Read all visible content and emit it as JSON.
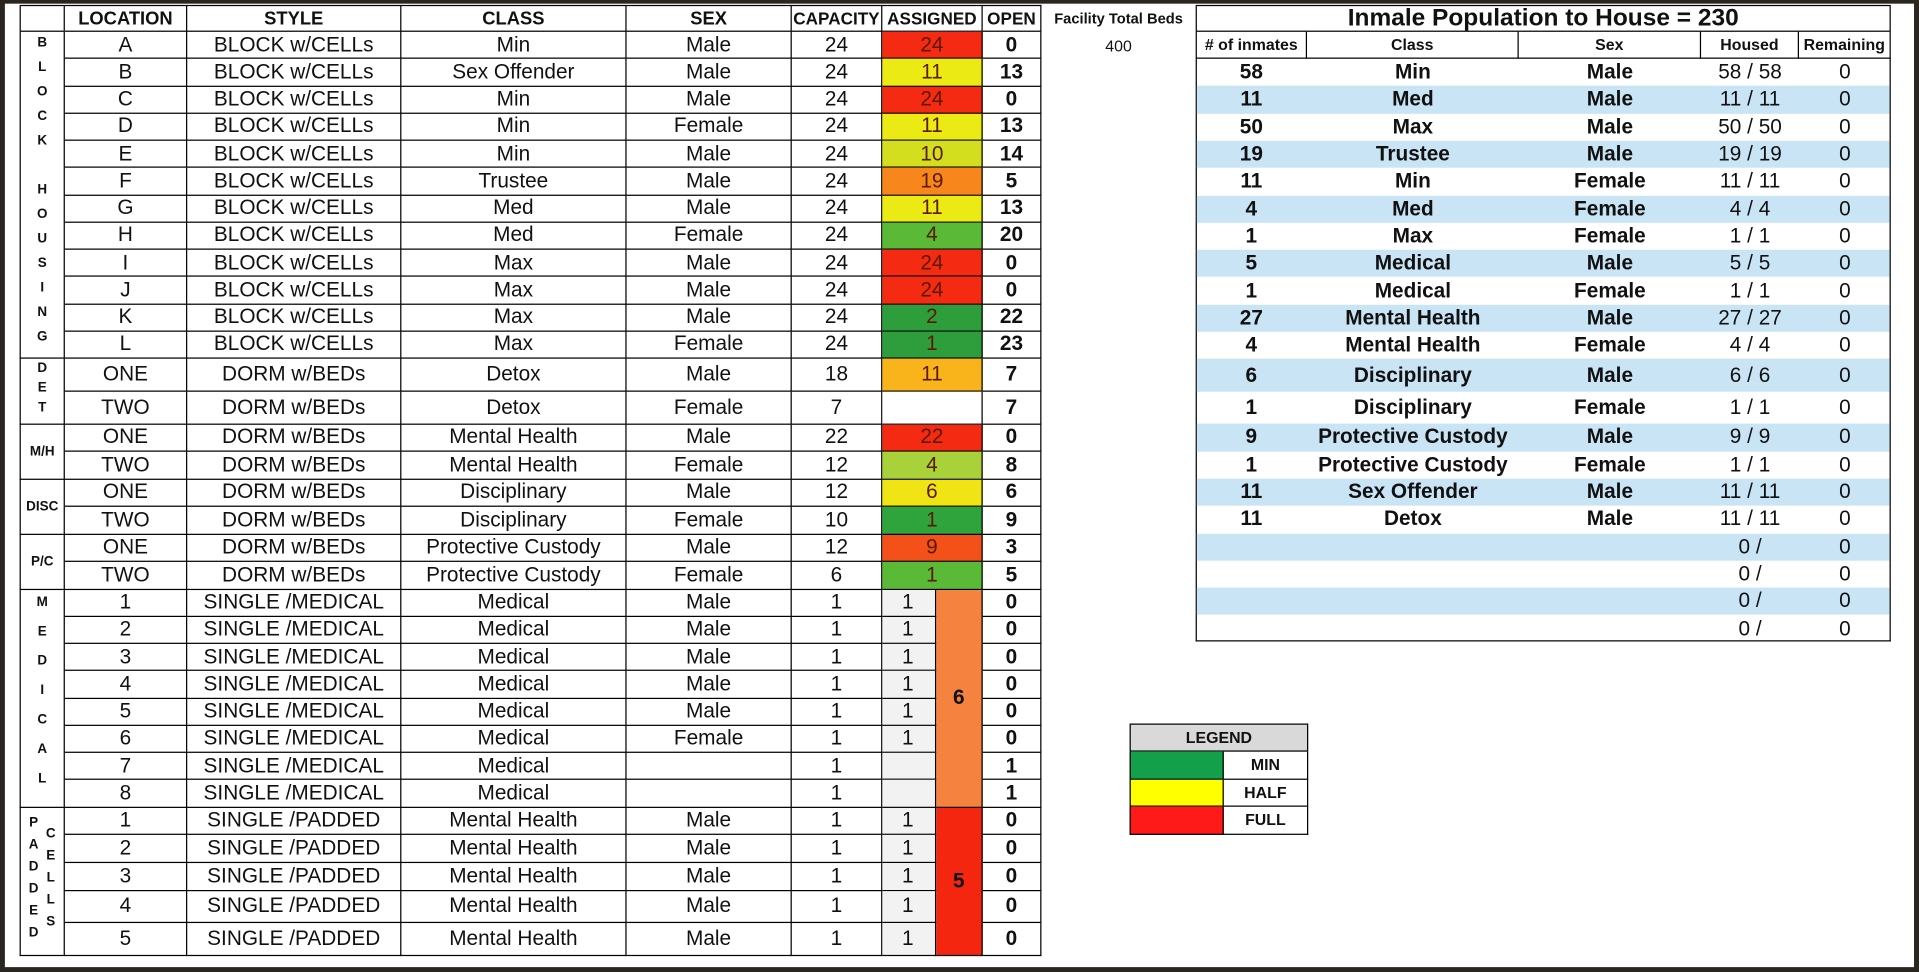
{
  "left_table": {
    "headers": [
      "LOCATION",
      "STYLE",
      "CLASS",
      "SEX",
      "CAPACITY",
      "ASSIGNED",
      "OPEN"
    ],
    "groups": [
      {
        "label": "BLOCK HOUSING",
        "rows": [
          {
            "location": "A",
            "style": "BLOCK w/CELLs",
            "class": "Min",
            "sex": "Male",
            "capacity": 24,
            "assigned": 24,
            "open": 0,
            "color": "#f52a12"
          },
          {
            "location": "B",
            "style": "BLOCK w/CELLs",
            "class": "Sex Offender",
            "sex": "Male",
            "capacity": 24,
            "assigned": 11,
            "open": 13,
            "color": "#ecea14"
          },
          {
            "location": "C",
            "style": "BLOCK w/CELLs",
            "class": "Min",
            "sex": "Male",
            "capacity": 24,
            "assigned": 24,
            "open": 0,
            "color": "#f52a12"
          },
          {
            "location": "D",
            "style": "BLOCK w/CELLs",
            "class": "Min",
            "sex": "Female",
            "capacity": 24,
            "assigned": 11,
            "open": 13,
            "color": "#ecea14"
          },
          {
            "location": "E",
            "style": "BLOCK w/CELLs",
            "class": "Min",
            "sex": "Male",
            "capacity": 24,
            "assigned": 10,
            "open": 14,
            "color": "#d3df1e"
          },
          {
            "location": "F",
            "style": "BLOCK w/CELLs",
            "class": "Trustee",
            "sex": "Male",
            "capacity": 24,
            "assigned": 19,
            "open": 5,
            "color": "#f7861d"
          },
          {
            "location": "G",
            "style": "BLOCK w/CELLs",
            "class": "Med",
            "sex": "Male",
            "capacity": 24,
            "assigned": 11,
            "open": 13,
            "color": "#ecea14"
          },
          {
            "location": "H",
            "style": "BLOCK w/CELLs",
            "class": "Med",
            "sex": "Female",
            "capacity": 24,
            "assigned": 4,
            "open": 20,
            "color": "#5ab936"
          },
          {
            "location": "I",
            "style": "BLOCK w/CELLs",
            "class": "Max",
            "sex": "Male",
            "capacity": 24,
            "assigned": 24,
            "open": 0,
            "color": "#f52a12"
          },
          {
            "location": "J",
            "style": "BLOCK w/CELLs",
            "class": "Max",
            "sex": "Male",
            "capacity": 24,
            "assigned": 24,
            "open": 0,
            "color": "#f52a12"
          },
          {
            "location": "K",
            "style": "BLOCK w/CELLs",
            "class": "Max",
            "sex": "Male",
            "capacity": 24,
            "assigned": 2,
            "open": 22,
            "color": "#2e9e3c"
          },
          {
            "location": "L",
            "style": "BLOCK w/CELLs",
            "class": "Max",
            "sex": "Female",
            "capacity": 24,
            "assigned": 1,
            "open": 23,
            "color": "#2e9e3c"
          }
        ]
      },
      {
        "label": "DET",
        "rows": [
          {
            "location": "ONE",
            "style": "DORM w/BEDs",
            "class": "Detox",
            "sex": "Male",
            "capacity": 18,
            "assigned": 11,
            "open": 7,
            "color": "#f9b31b"
          },
          {
            "location": "TWO",
            "style": "DORM w/BEDs",
            "class": "Detox",
            "sex": "Female",
            "capacity": 7,
            "open": 7
          }
        ]
      },
      {
        "label": "M/H",
        "rows": [
          {
            "location": "ONE",
            "style": "DORM w/BEDs",
            "class": "Mental Health",
            "sex": "Male",
            "capacity": 22,
            "assigned": 22,
            "open": 0,
            "color": "#f52a12"
          },
          {
            "location": "TWO",
            "style": "DORM w/BEDs",
            "class": "Mental Health",
            "sex": "Female",
            "capacity": 12,
            "assigned": 4,
            "open": 8,
            "color": "#a8d13a"
          }
        ]
      },
      {
        "label": "DISC",
        "rows": [
          {
            "location": "ONE",
            "style": "DORM w/BEDs",
            "class": "Disciplinary",
            "sex": "Male",
            "capacity": 12,
            "assigned": 6,
            "open": 6,
            "color": "#f0e414"
          },
          {
            "location": "TWO",
            "style": "DORM w/BEDs",
            "class": "Disciplinary",
            "sex": "Female",
            "capacity": 10,
            "assigned": 1,
            "open": 9,
            "color": "#2fa43c"
          }
        ]
      },
      {
        "label": "P/C",
        "rows": [
          {
            "location": "ONE",
            "style": "DORM w/BEDs",
            "class": "Protective Custody",
            "sex": "Male",
            "capacity": 12,
            "assigned": 9,
            "open": 3,
            "color": "#f4501a"
          },
          {
            "location": "TWO",
            "style": "DORM w/BEDs",
            "class": "Protective Custody",
            "sex": "Female",
            "capacity": 6,
            "assigned": 1,
            "open": 5,
            "color": "#5ab936"
          }
        ]
      },
      {
        "label": "MEDICAL",
        "total": 6,
        "total_color": "#f6823f",
        "rows": [
          {
            "location": "1",
            "style": "SINGLE /MEDICAL",
            "class": "Medical",
            "sex": "Male",
            "capacity": 1,
            "assigned": 1,
            "open": 0
          },
          {
            "location": "2",
            "style": "SINGLE /MEDICAL",
            "class": "Medical",
            "sex": "Male",
            "capacity": 1,
            "assigned": 1,
            "open": 0
          },
          {
            "location": "3",
            "style": "SINGLE /MEDICAL",
            "class": "Medical",
            "sex": "Male",
            "capacity": 1,
            "assigned": 1,
            "open": 0
          },
          {
            "location": "4",
            "style": "SINGLE /MEDICAL",
            "class": "Medical",
            "sex": "Male",
            "capacity": 1,
            "assigned": 1,
            "open": 0
          },
          {
            "location": "5",
            "style": "SINGLE /MEDICAL",
            "class": "Medical",
            "sex": "Male",
            "capacity": 1,
            "assigned": 1,
            "open": 0
          },
          {
            "location": "6",
            "style": "SINGLE /MEDICAL",
            "class": "Medical",
            "sex": "Female",
            "capacity": 1,
            "assigned": 1,
            "open": 0
          },
          {
            "location": "7",
            "style": "SINGLE /MEDICAL",
            "class": "Medical",
            "capacity": 1,
            "open": 1
          },
          {
            "location": "8",
            "style": "SINGLE /MEDICAL",
            "class": "Medical",
            "capacity": 1,
            "open": 1
          }
        ]
      },
      {
        "label": "PADDED CELLS",
        "total": 5,
        "total_color": "#f4260f",
        "rows": [
          {
            "location": "1",
            "style": "SINGLE /PADDED",
            "class": "Mental Health",
            "sex": "Male",
            "capacity": 1,
            "assigned": 1,
            "open": 0
          },
          {
            "location": "2",
            "style": "SINGLE /PADDED",
            "class": "Mental Health",
            "sex": "Male",
            "capacity": 1,
            "assigned": 1,
            "open": 0
          },
          {
            "location": "3",
            "style": "SINGLE /PADDED",
            "class": "Mental Health",
            "sex": "Male",
            "capacity": 1,
            "assigned": 1,
            "open": 0
          },
          {
            "location": "4",
            "style": "SINGLE /PADDED",
            "class": "Mental Health",
            "sex": "Male",
            "capacity": 1,
            "assigned": 1,
            "open": 0
          },
          {
            "location": "5",
            "style": "SINGLE /PADDED",
            "class": "Mental Health",
            "sex": "Male",
            "capacity": 1,
            "assigned": 1,
            "open": 0
          }
        ]
      }
    ]
  },
  "facility": {
    "label": "Facility Total Beds",
    "value": 400
  },
  "population": {
    "title": "Inmale Population to House = 230",
    "headers": [
      "# of inmates",
      "Class",
      "Sex",
      "Housed",
      "Remaining"
    ],
    "stripe_color": "#c9e4f5",
    "rows": [
      {
        "count": 58,
        "class": "Min",
        "sex": "Male",
        "housed": "58 / 58",
        "remaining": 0
      },
      {
        "count": 11,
        "class": "Med",
        "sex": "Male",
        "housed": "11 / 11",
        "remaining": 0
      },
      {
        "count": 50,
        "class": "Max",
        "sex": "Male",
        "housed": "50 / 50",
        "remaining": 0
      },
      {
        "count": 19,
        "class": "Trustee",
        "sex": "Male",
        "housed": "19 / 19",
        "remaining": 0
      },
      {
        "count": 11,
        "class": "Min",
        "sex": "Female",
        "housed": "11 / 11",
        "remaining": 0
      },
      {
        "count": 4,
        "class": "Med",
        "sex": "Female",
        "housed": "4 / 4",
        "remaining": 0
      },
      {
        "count": 1,
        "class": "Max",
        "sex": "Female",
        "housed": "1 / 1",
        "remaining": 0
      },
      {
        "count": 5,
        "class": "Medical",
        "sex": "Male",
        "housed": "5 / 5",
        "remaining": 0
      },
      {
        "count": 1,
        "class": "Medical",
        "sex": "Female",
        "housed": "1 / 1",
        "remaining": 0
      },
      {
        "count": 27,
        "class": "Mental Health",
        "sex": "Male",
        "housed": "27 / 27",
        "remaining": 0
      },
      {
        "count": 4,
        "class": "Mental Health",
        "sex": "Female",
        "housed": "4 / 4",
        "remaining": 0
      },
      {
        "count": 6,
        "class": "Disciplinary",
        "sex": "Male",
        "housed": "6 / 6",
        "remaining": 0
      },
      {
        "count": 1,
        "class": "Disciplinary",
        "sex": "Female",
        "housed": "1 / 1",
        "remaining": 0
      },
      {
        "count": 9,
        "class": "Protective Custody",
        "sex": "Male",
        "housed": "9 / 9",
        "remaining": 0
      },
      {
        "count": 1,
        "class": "Protective Custody",
        "sex": "Female",
        "housed": "1 / 1",
        "remaining": 0
      },
      {
        "count": 11,
        "class": "Sex Offender",
        "sex": "Male",
        "housed": "11 / 11",
        "remaining": 0
      },
      {
        "count": 11,
        "class": "Detox",
        "sex": "Male",
        "housed": "11 / 11",
        "remaining": 0
      },
      {
        "housed": "0 /",
        "remaining": 0
      },
      {
        "housed": "0 /",
        "remaining": 0
      },
      {
        "housed": "0 /",
        "remaining": 0
      },
      {
        "housed": "0 /",
        "remaining": 0
      }
    ]
  },
  "legend": {
    "title": "LEGEND",
    "items": [
      {
        "label": "MIN",
        "color": "#12a04a"
      },
      {
        "label": "HALF",
        "color": "#ffff00"
      },
      {
        "label": "FULL",
        "color": "#ff1a1a"
      }
    ]
  }
}
